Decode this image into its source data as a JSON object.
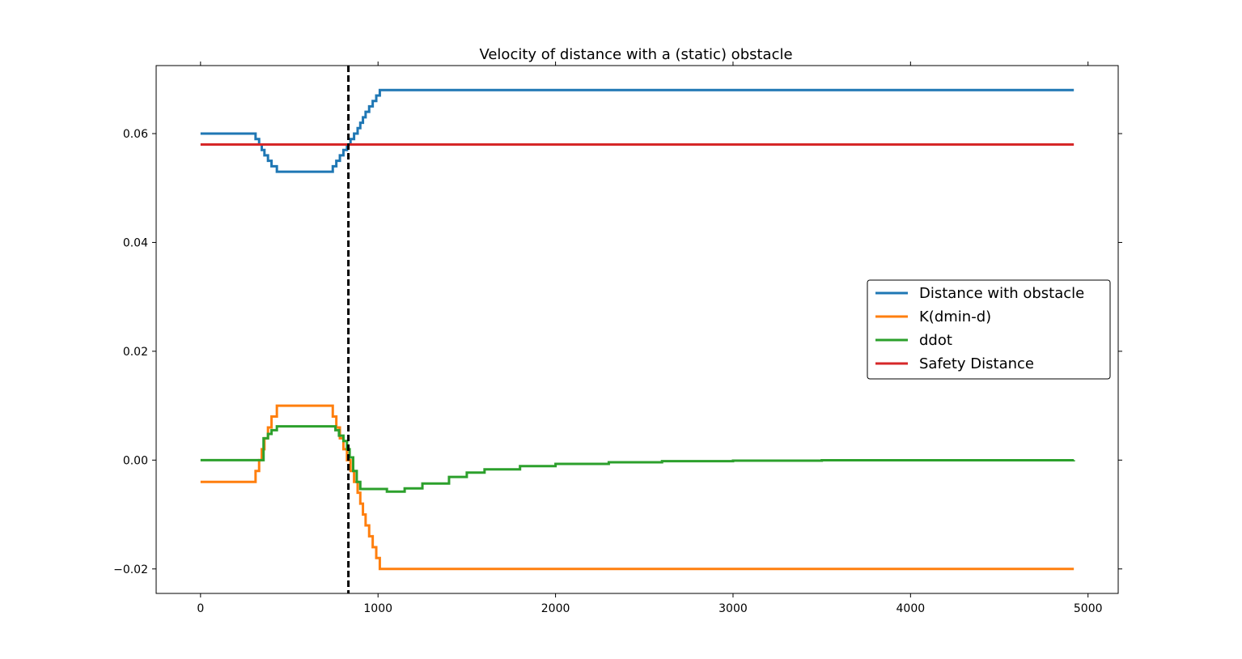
{
  "chart_data": {
    "type": "line",
    "title": "Velocity of distance with a (static) obstacle",
    "xlabel": "",
    "ylabel": "",
    "xlim": [
      -250,
      5170
    ],
    "ylim": [
      -0.0245,
      0.0725
    ],
    "xticks": [
      0,
      1000,
      2000,
      3000,
      4000,
      5000
    ],
    "xtick_labels": [
      "0",
      "1000",
      "2000",
      "3000",
      "4000",
      "5000"
    ],
    "yticks": [
      -0.02,
      0.0,
      0.02,
      0.04,
      0.06
    ],
    "ytick_labels": [
      "−0.02",
      "0.00",
      "0.02",
      "0.04",
      "0.06"
    ],
    "grid": false,
    "legend_position": "center-right",
    "vline": {
      "x": 833,
      "style": "dashed",
      "color": "#000000"
    },
    "series": [
      {
        "name": "Distance with obstacle",
        "color": "#1f77b4",
        "step": true,
        "points": [
          [
            0,
            0.06
          ],
          [
            290,
            0.06
          ],
          [
            310,
            0.059
          ],
          [
            330,
            0.058
          ],
          [
            345,
            0.057
          ],
          [
            360,
            0.056
          ],
          [
            380,
            0.055
          ],
          [
            400,
            0.054
          ],
          [
            430,
            0.053
          ],
          [
            730,
            0.053
          ],
          [
            745,
            0.054
          ],
          [
            765,
            0.055
          ],
          [
            785,
            0.056
          ],
          [
            805,
            0.057
          ],
          [
            825,
            0.058
          ],
          [
            845,
            0.059
          ],
          [
            865,
            0.06
          ],
          [
            885,
            0.061
          ],
          [
            900,
            0.062
          ],
          [
            915,
            0.063
          ],
          [
            930,
            0.064
          ],
          [
            950,
            0.065
          ],
          [
            970,
            0.066
          ],
          [
            990,
            0.067
          ],
          [
            1010,
            0.068
          ],
          [
            4920,
            0.068
          ]
        ]
      },
      {
        "name": "K(dmin-d)",
        "color": "#ff7f0e",
        "step": true,
        "points": [
          [
            0,
            -0.004
          ],
          [
            290,
            -0.004
          ],
          [
            310,
            -0.002
          ],
          [
            330,
            0.0
          ],
          [
            345,
            0.002
          ],
          [
            360,
            0.004
          ],
          [
            380,
            0.006
          ],
          [
            400,
            0.008
          ],
          [
            430,
            0.01
          ],
          [
            730,
            0.01
          ],
          [
            745,
            0.008
          ],
          [
            765,
            0.006
          ],
          [
            785,
            0.004
          ],
          [
            805,
            0.002
          ],
          [
            825,
            0.0
          ],
          [
            845,
            -0.002
          ],
          [
            865,
            -0.004
          ],
          [
            885,
            -0.006
          ],
          [
            900,
            -0.008
          ],
          [
            915,
            -0.01
          ],
          [
            930,
            -0.012
          ],
          [
            950,
            -0.014
          ],
          [
            970,
            -0.016
          ],
          [
            990,
            -0.018
          ],
          [
            1010,
            -0.02
          ],
          [
            4920,
            -0.02
          ]
        ]
      },
      {
        "name": "ddot",
        "color": "#2ca02c",
        "step": true,
        "points": [
          [
            0,
            0.0
          ],
          [
            350,
            0.0
          ],
          [
            355,
            0.004
          ],
          [
            380,
            0.0048
          ],
          [
            400,
            0.0055
          ],
          [
            430,
            0.0062
          ],
          [
            740,
            0.0062
          ],
          [
            760,
            0.0055
          ],
          [
            780,
            0.0045
          ],
          [
            805,
            0.0035
          ],
          [
            825,
            0.002
          ],
          [
            840,
            0.0005
          ],
          [
            860,
            -0.002
          ],
          [
            880,
            -0.004
          ],
          [
            900,
            -0.0053
          ],
          [
            1050,
            -0.0058
          ],
          [
            1150,
            -0.0052
          ],
          [
            1250,
            -0.0043
          ],
          [
            1400,
            -0.0031
          ],
          [
            1500,
            -0.0023
          ],
          [
            1600,
            -0.0017
          ],
          [
            1800,
            -0.0011
          ],
          [
            2000,
            -0.0007
          ],
          [
            2300,
            -0.0004
          ],
          [
            2600,
            -0.0002
          ],
          [
            3000,
            -0.0001
          ],
          [
            3500,
            -3e-05
          ],
          [
            4920,
            0.0
          ]
        ]
      },
      {
        "name": "Safety Distance",
        "color": "#d62728",
        "step": false,
        "points": [
          [
            0,
            0.058
          ],
          [
            4920,
            0.058
          ]
        ]
      }
    ]
  }
}
